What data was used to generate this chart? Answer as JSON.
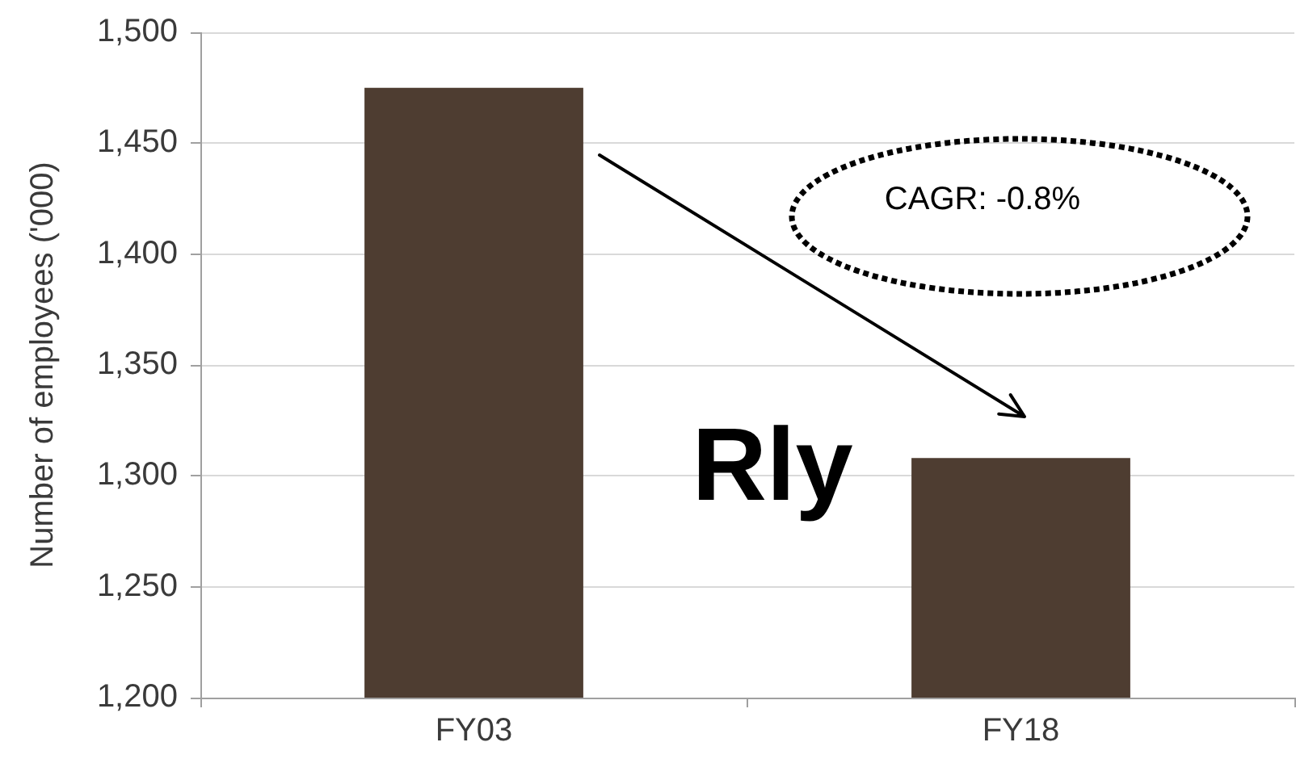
{
  "chart_data": {
    "type": "bar",
    "ylabel": "Number of employees ('000)",
    "categories": [
      "FY03",
      "FY18"
    ],
    "values": [
      1475,
      1308
    ],
    "color": "#4e3d31",
    "ylim": [
      1200,
      1500
    ],
    "yticks": [
      {
        "value": 1200,
        "label": "1,200"
      },
      {
        "value": 1250,
        "label": "1,250"
      },
      {
        "value": 1300,
        "label": "1,300"
      },
      {
        "value": 1350,
        "label": "1,350"
      },
      {
        "value": 1400,
        "label": "1,400"
      },
      {
        "value": 1450,
        "label": "1,450"
      },
      {
        "value": 1500,
        "label": "1,500"
      }
    ],
    "grid": "y",
    "annotations": [
      "CAGR: -0.8%",
      "Rly"
    ]
  }
}
